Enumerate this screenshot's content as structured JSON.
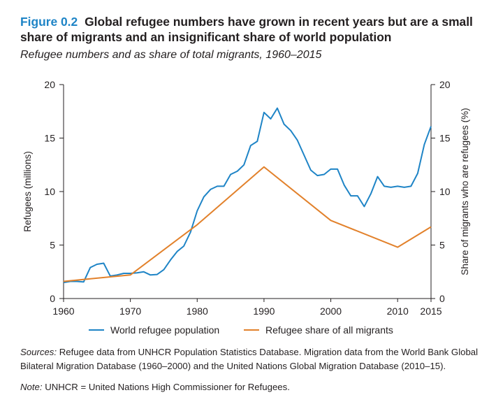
{
  "figure": {
    "label": "Figure 0.2",
    "title": "Global refugee numbers have grown in recent years but are a small share of migrants and an insignificant share of world population",
    "subtitle": "Refugee numbers and as share of total migrants, 1960–2015"
  },
  "chart_data": {
    "type": "line",
    "xlabel": "",
    "ylabel": "Refugees (millions)",
    "y2label": "Share of migrants who are refugees (%)",
    "xlim": [
      1960,
      2015
    ],
    "ylim": [
      0,
      20
    ],
    "y2lim": [
      0,
      20
    ],
    "x_ticks": [
      "1960",
      "1970",
      "1980",
      "1990",
      "2000",
      "2010",
      "2015"
    ],
    "y_ticks": [
      "0",
      "5",
      "10",
      "15",
      "20"
    ],
    "y2_ticks": [
      "0",
      "5",
      "10",
      "15",
      "20"
    ],
    "grid": false,
    "legend_position": "bottom",
    "series": [
      {
        "name": "World refugee population",
        "color": "#1e84c6",
        "axis": "left",
        "x": [
          1960,
          1961,
          1962,
          1963,
          1964,
          1965,
          1966,
          1967,
          1968,
          1969,
          1970,
          1971,
          1972,
          1973,
          1974,
          1975,
          1976,
          1977,
          1978,
          1979,
          1980,
          1981,
          1982,
          1983,
          1984,
          1985,
          1986,
          1987,
          1988,
          1989,
          1990,
          1991,
          1992,
          1993,
          1994,
          1995,
          1996,
          1997,
          1998,
          1999,
          2000,
          2001,
          2002,
          2003,
          2004,
          2005,
          2006,
          2007,
          2008,
          2009,
          2010,
          2011,
          2012,
          2013,
          2014,
          2015
        ],
        "values": [
          1.5,
          1.6,
          1.6,
          1.55,
          2.9,
          3.2,
          3.3,
          2.1,
          2.2,
          2.35,
          2.35,
          2.4,
          2.5,
          2.2,
          2.25,
          2.7,
          3.6,
          4.4,
          4.9,
          6.2,
          8.2,
          9.5,
          10.2,
          10.5,
          10.5,
          11.6,
          11.9,
          12.5,
          14.3,
          14.7,
          17.4,
          16.8,
          17.8,
          16.3,
          15.7,
          14.8,
          13.4,
          12.0,
          11.5,
          11.6,
          12.1,
          12.1,
          10.6,
          9.6,
          9.6,
          8.6,
          9.8,
          11.4,
          10.5,
          10.4,
          10.5,
          10.4,
          10.5,
          11.7,
          14.4,
          16.1
        ]
      },
      {
        "name": "Refugee share of all migrants",
        "color": "#e2812b",
        "axis": "right",
        "x": [
          1960,
          1970,
          1980,
          1990,
          2000,
          2010,
          2015
        ],
        "values": [
          1.6,
          2.2,
          6.9,
          12.3,
          7.3,
          4.8,
          6.7
        ]
      }
    ]
  },
  "notes": {
    "sources_label": "Sources:",
    "sources_text": " Refugee data from UNHCR Population Statistics Database. Migration data from the World Bank Global Bilateral Migration Database (1960–2000) and the United Nations Global Migration Database (2010–15).",
    "note_label": "Note:",
    "note_text": " UNHCR = United Nations High Commissioner for Refugees."
  }
}
